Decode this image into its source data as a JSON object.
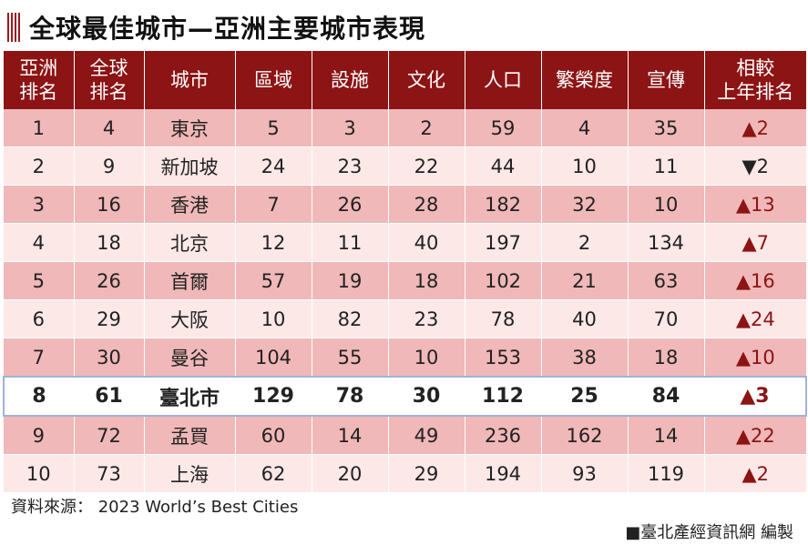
{
  "title": "全球最佳城市—亞洲主要城市表現",
  "table": {
    "headers": [
      "亞洲\n排名",
      "全球\n排名",
      "城市",
      "區域",
      "設施",
      "文化",
      "人口",
      "繁榮度",
      "宣傳",
      "相較\n上年排名"
    ],
    "rows": [
      [
        "1",
        "4",
        "東京",
        "5",
        "3",
        "2",
        "59",
        "4",
        "35",
        "▲2"
      ],
      [
        "2",
        "9",
        "新加坡",
        "24",
        "23",
        "22",
        "44",
        "10",
        "11",
        "▼2"
      ],
      [
        "3",
        "16",
        "香港",
        "7",
        "26",
        "28",
        "182",
        "32",
        "10",
        "▲13"
      ],
      [
        "4",
        "18",
        "北京",
        "12",
        "11",
        "40",
        "197",
        "2",
        "134",
        "▲7"
      ],
      [
        "5",
        "26",
        "首爾",
        "57",
        "19",
        "18",
        "102",
        "21",
        "63",
        "▲16"
      ],
      [
        "6",
        "29",
        "大阪",
        "10",
        "82",
        "23",
        "78",
        "40",
        "70",
        "▲24"
      ],
      [
        "7",
        "30",
        "曼谷",
        "104",
        "55",
        "10",
        "153",
        "38",
        "18",
        "▲10"
      ],
      [
        "8",
        "61",
        "臺北市",
        "129",
        "78",
        "30",
        "112",
        "25",
        "84",
        "▲3"
      ],
      [
        "9",
        "72",
        "孟買",
        "60",
        "14",
        "49",
        "236",
        "162",
        "14",
        "▲22"
      ],
      [
        "10",
        "73",
        "上海",
        "62",
        "20",
        "29",
        "194",
        "93",
        "119",
        "▲2"
      ]
    ],
    "highlight_row": 7
  },
  "source": "資料來源： 2023 World’s Best Cities",
  "credit": "■臺北產經資訊網 編製",
  "colors": {
    "header": "#8c1414",
    "row_dark": "#f0b8b8",
    "row_light": "#fde8e8",
    "highlight_border": "#9fb3d4"
  }
}
